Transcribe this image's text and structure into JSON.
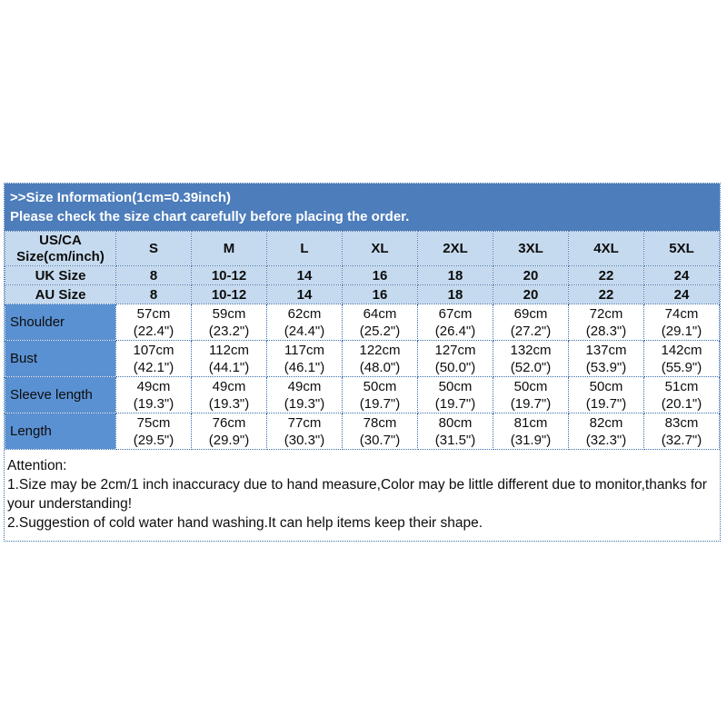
{
  "header": {
    "line1": ">>Size Information(1cm=0.39inch)",
    "line2": "Please check the size chart carefully before placing the order."
  },
  "table": {
    "corner": "US/CA\nSize(cm/inch)",
    "sizes": [
      "S",
      "M",
      "L",
      "XL",
      "2XL",
      "3XL",
      "4XL",
      "5XL"
    ],
    "uk": {
      "label": "UK Size",
      "values": [
        "8",
        "10-12",
        "14",
        "16",
        "18",
        "20",
        "22",
        "24"
      ]
    },
    "au": {
      "label": "AU Size",
      "values": [
        "8",
        "10-12",
        "14",
        "16",
        "18",
        "20",
        "22",
        "24"
      ]
    },
    "measurements": [
      {
        "label": "Shoulder",
        "values": [
          "57cm\n(22.4\")",
          "59cm\n(23.2\")",
          "62cm\n(24.4\")",
          "64cm\n(25.2\")",
          "67cm\n(26.4\")",
          "69cm\n(27.2\")",
          "72cm\n(28.3\")",
          "74cm\n(29.1\")"
        ]
      },
      {
        "label": "Bust",
        "values": [
          "107cm\n(42.1\")",
          "112cm\n(44.1\")",
          "117cm\n(46.1\")",
          "122cm\n(48.0\")",
          "127cm\n(50.0\")",
          "132cm\n(52.0\")",
          "137cm\n(53.9\")",
          "142cm\n(55.9\")"
        ]
      },
      {
        "label": "Sleeve length",
        "values": [
          "49cm\n(19.3\")",
          "49cm\n(19.3\")",
          "49cm\n(19.3\")",
          "50cm\n(19.7\")",
          "50cm\n(19.7\")",
          "50cm\n(19.7\")",
          "50cm\n(19.7\")",
          "51cm\n(20.1\")"
        ]
      },
      {
        "label": "Length",
        "values": [
          "75cm\n(29.5\")",
          "76cm\n(29.9\")",
          "77cm\n(30.3\")",
          "78cm\n(30.7\")",
          "80cm\n(31.5\")",
          "81cm\n(31.9\")",
          "82cm\n(32.3\")",
          "83cm\n(32.7\")"
        ]
      }
    ]
  },
  "attention": {
    "title": "Attention:",
    "note1": "1.Size may be 2cm/1 inch inaccuracy due to hand measure,Color may be little different due to monitor,thanks for your understanding!",
    "note2": "2.Suggestion of cold water hand washing.It can help items keep their shape."
  },
  "colors": {
    "title_bar_bg": "#4d7dbb",
    "header_row_bg": "#c5daee",
    "row_label_bg": "#5a91d2",
    "border": "#3c6eae",
    "title_text": "#ffffff",
    "body_text": "#0d0d0d"
  }
}
